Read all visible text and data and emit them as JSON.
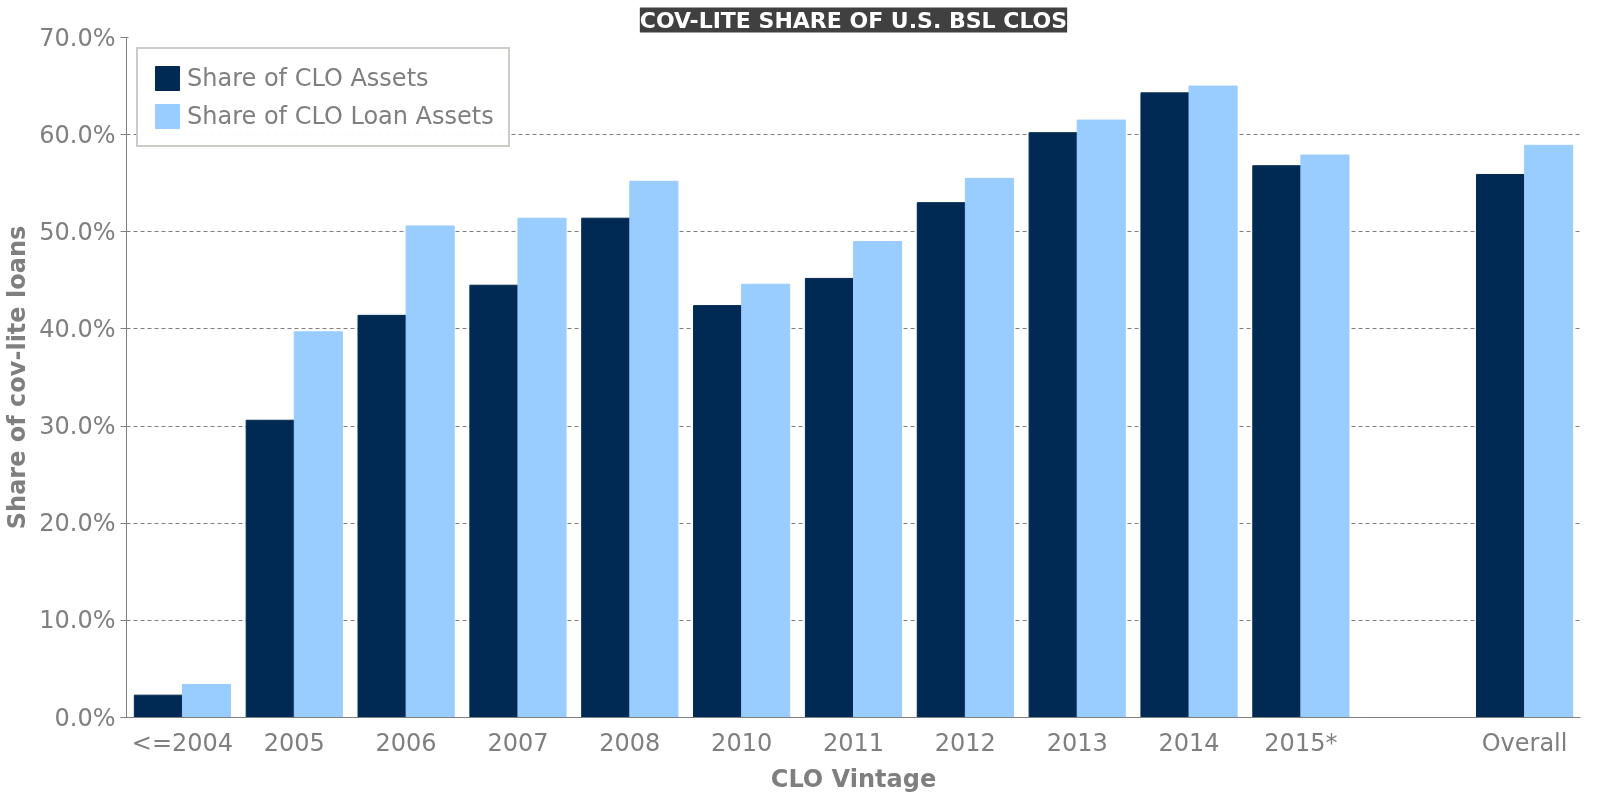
{
  "chart_data": {
    "type": "bar",
    "title": "COV-LITE SHARE OF U.S. BSL CLOS",
    "xlabel": "CLO Vintage",
    "ylabel": "Share of cov-lite loans",
    "categories": [
      "<=2004",
      "2005",
      "2006",
      "2007",
      "2008",
      "2010",
      "2011",
      "2012",
      "2013",
      "2014",
      "2015*",
      null,
      "Overall"
    ],
    "series": [
      {
        "name": "Share of CLO Assets",
        "color": "#002a54",
        "values": [
          2.3,
          30.6,
          41.4,
          44.5,
          51.4,
          42.4,
          45.2,
          53.0,
          60.2,
          64.3,
          56.8,
          null,
          55.9
        ]
      },
      {
        "name": "Share of CLO Loan Assets",
        "color": "#99ccff",
        "values": [
          3.4,
          39.7,
          50.6,
          51.4,
          55.2,
          44.6,
          49.0,
          55.5,
          61.5,
          65.0,
          57.9,
          null,
          58.9
        ]
      }
    ],
    "ylim": [
      0,
      70
    ],
    "yticks": [
      {
        "value": 0,
        "label": "0.0%"
      },
      {
        "value": 10,
        "label": "10.0%"
      },
      {
        "value": 20,
        "label": "20.0%"
      },
      {
        "value": 30,
        "label": "30.0%"
      },
      {
        "value": 40,
        "label": "40.0%"
      },
      {
        "value": 50,
        "label": "50.0%"
      },
      {
        "value": 60,
        "label": "60.0%"
      },
      {
        "value": 70,
        "label": "70.0%"
      }
    ],
    "grid": "y",
    "legend": "top left"
  }
}
